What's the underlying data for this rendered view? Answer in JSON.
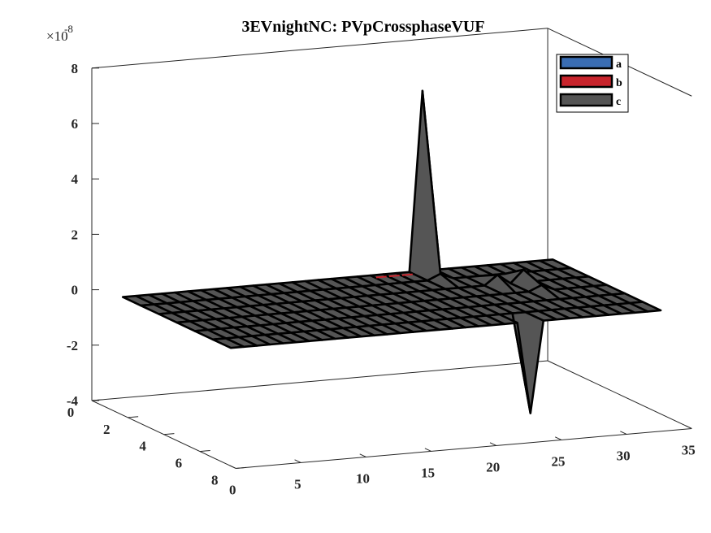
{
  "chart_data": {
    "type": "surface",
    "title": "3EVnightNC: PVpCrossphaseVUF",
    "exponent_base": "×10",
    "exponent_power": "-8",
    "xlabel": "",
    "ylabel": "",
    "zlabel": "",
    "xlim": [
      0,
      35
    ],
    "ylim": [
      0,
      8
    ],
    "zlim": [
      -4,
      8
    ],
    "x_ticks": [
      0,
      5,
      10,
      15,
      20,
      25,
      30,
      35
    ],
    "x_tick_labels": [
      "0",
      "5",
      "10",
      "15",
      "20",
      "25",
      "30",
      "35"
    ],
    "y_ticks": [
      0,
      2,
      4,
      6,
      8
    ],
    "y_tick_labels": [
      "0",
      "2",
      "4",
      "6",
      "8"
    ],
    "z_ticks": [
      -4,
      -2,
      0,
      2,
      4,
      6,
      8
    ],
    "z_tick_labels": [
      "-4",
      "-2",
      "0",
      "2",
      "4",
      "6",
      "8"
    ],
    "grid": false,
    "box": true,
    "legend_position": "top-right",
    "x_grid": [
      1,
      34
    ],
    "y_grid": [
      1,
      7
    ],
    "base_value": 0,
    "series": [
      {
        "name": "a",
        "color": "#3a6db3",
        "peaks": []
      },
      {
        "name": "b",
        "color": "#c8242c",
        "peaks": []
      },
      {
        "name": "c",
        "color": "#555555",
        "peaks": [
          {
            "x": 24,
            "y": 1,
            "z": 6.5
          },
          {
            "x": 24,
            "y": 7,
            "z": -3.3
          },
          {
            "x": 24,
            "y": 2,
            "z": 0.2
          },
          {
            "x": 27,
            "y": 3,
            "z": 0.35
          },
          {
            "x": 29,
            "y": 3,
            "z": 0.45
          },
          {
            "x": 29,
            "y": 4,
            "z": 0.2
          }
        ]
      }
    ]
  }
}
